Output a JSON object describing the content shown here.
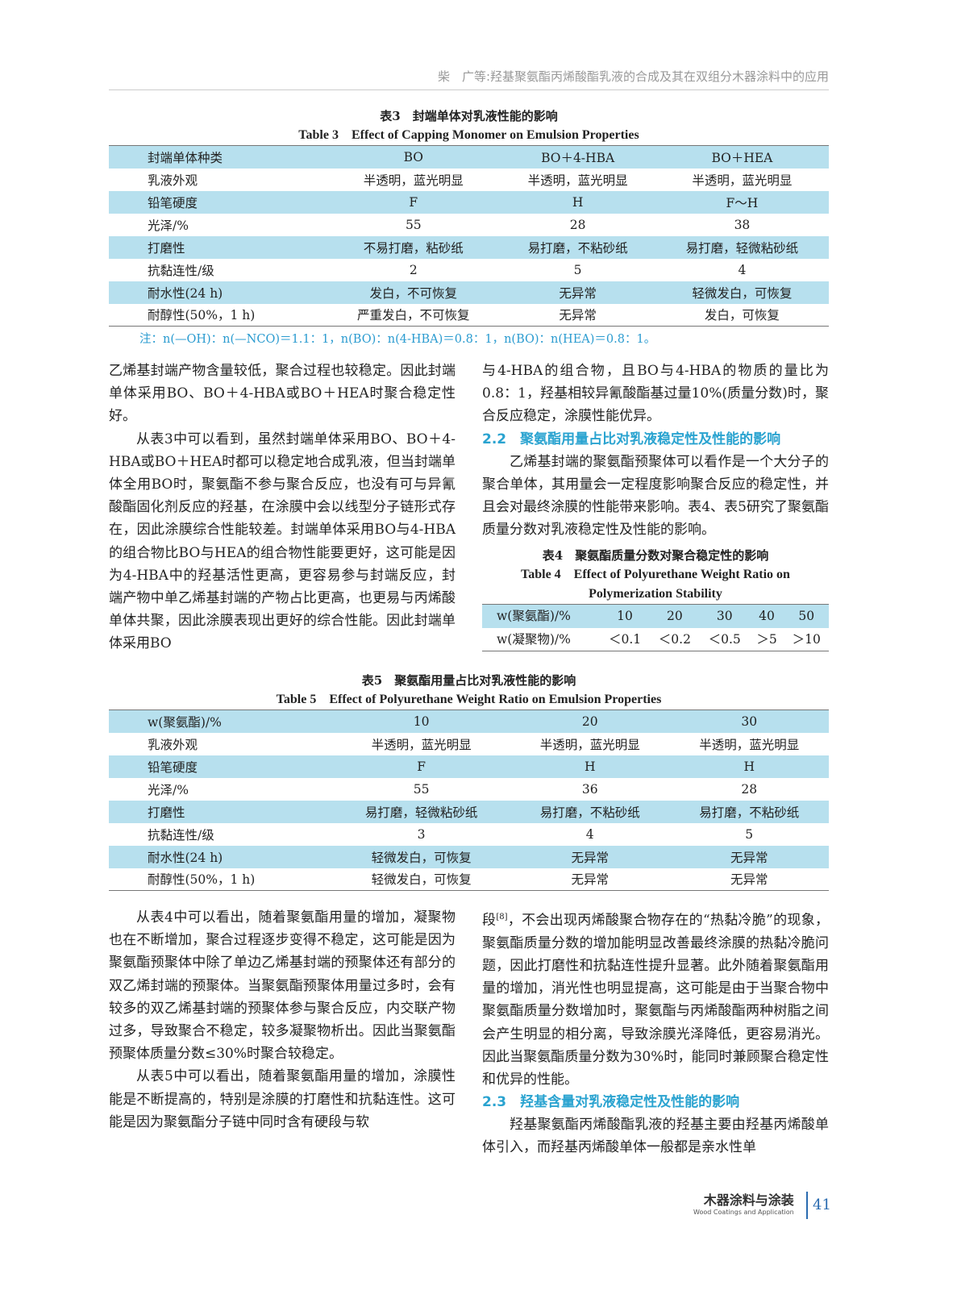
{
  "header": {
    "running_title": "柴　广等:羟基聚氨酯丙烯酸酯乳液的合成及其在双组分木器涂料中的应用"
  },
  "table3": {
    "caption_cn": "表3　封端单体对乳液性能的影响",
    "caption_en": "Table 3　Effect of Capping Monomer on Emulsion Properties",
    "rows": [
      [
        "封端单体种类",
        "BO",
        "BO＋4-HBA",
        "BO＋HEA"
      ],
      [
        "乳液外观",
        "半透明，蓝光明显",
        "半透明，蓝光明显",
        "半透明，蓝光明显"
      ],
      [
        "铅笔硬度",
        "F",
        "H",
        "F～H"
      ],
      [
        "光泽/%",
        "55",
        "28",
        "38"
      ],
      [
        "打磨性",
        "不易打磨，粘砂纸",
        "易打磨，不粘砂纸",
        "易打磨，轻微粘砂纸"
      ],
      [
        "抗黏连性/级",
        "2",
        "5",
        "4"
      ],
      [
        "耐水性(24 h)",
        "发白，不可恢复",
        "无异常",
        "轻微发白，可恢复"
      ],
      [
        "耐醇性(50%，1 h)",
        "严重发白，不可恢复",
        "无异常",
        "发白，可恢复"
      ]
    ],
    "note": "注：n(—OH)：n(—NCO)＝1.1：1，n(BO)：n(4-HBA)＝0.8：1，n(BO)：n(HEA)＝0.8：1。"
  },
  "left1": [
    "乙烯基封端产物含量较低，聚合过程也较稳定。因此封端单体采用BO、BO＋4-HBA或BO＋HEA时聚合稳定性好。",
    "从表3中可以看到，虽然封端单体采用BO、BO＋4-HBA或BO＋HEA时都可以稳定地合成乳液，但当封端单体全用BO时，聚氨酯不参与聚合反应，也没有可与异氰酸酯固化剂反应的羟基，在涂膜中会以线型分子链形式存在，因此涂膜综合性能较差。封端单体采用BO与4-HBA的组合物比BO与HEA的组合物性能要更好，这可能是因为4-HBA中的羟基活性更高，更容易参与封端反应，封端产物中单乙烯基封端的产物占比更高，也更易与丙烯酸单体共聚，因此涂膜表现出更好的综合性能。因此封端单体采用BO"
  ],
  "right1": {
    "p1": "与4-HBA的组合物，且BO与4-HBA的物质的量比为0.8：1，羟基相较异氰酸酯基过量10%(质量分数)时，聚合反应稳定，涂膜性能优异。",
    "h22": "2.2　聚氨酯用量占比对乳液稳定性及性能的影响",
    "p2": "乙烯基封端的聚氨酯预聚体可以看作是一个大分子的聚合单体，其用量会一定程度影响聚合反应的稳定性，并且会对最终涂膜的性能带来影响。表4、表5研究了聚氨酯质量分数对乳液稳定性及性能的影响。"
  },
  "table4": {
    "caption_cn": "表4　聚氨酯质量分数对聚合稳定性的影响",
    "caption_en": "Table 4　Effect of Polyurethane Weight Ratio on Polymerization Stability",
    "rows": [
      [
        "w(聚氨酯)/%",
        "10",
        "20",
        "30",
        "40",
        "50"
      ],
      [
        "w(凝聚物)/%",
        "＜0.1",
        "＜0.2",
        "＜0.5",
        "＞5",
        "＞10"
      ]
    ]
  },
  "table5": {
    "caption_cn": "表5　聚氨酯用量占比对乳液性能的影响",
    "caption_en": "Table 5　Effect of Polyurethane Weight Ratio on Emulsion Properties",
    "rows": [
      [
        "w(聚氨酯)/%",
        "10",
        "20",
        "30"
      ],
      [
        "乳液外观",
        "半透明，蓝光明显",
        "半透明，蓝光明显",
        "半透明，蓝光明显"
      ],
      [
        "铅笔硬度",
        "F",
        "H",
        "H"
      ],
      [
        "光泽/%",
        "55",
        "36",
        "28"
      ],
      [
        "打磨性",
        "易打磨，轻微粘砂纸",
        "易打磨，不粘砂纸",
        "易打磨，不粘砂纸"
      ],
      [
        "抗黏连性/级",
        "3",
        "4",
        "5"
      ],
      [
        "耐水性(24 h)",
        "轻微发白，可恢复",
        "无异常",
        "无异常"
      ],
      [
        "耐醇性(50%，1 h)",
        "轻微发白，可恢复",
        "无异常",
        "无异常"
      ]
    ]
  },
  "left2": [
    "从表4中可以看出，随着聚氨酯用量的增加，凝聚物也在不断增加，聚合过程逐步变得不稳定，这可能是因为聚氨酯预聚体中除了单边乙烯基封端的预聚体还有部分的双乙烯封端的预聚体。当聚氨酯预聚体用量过多时，会有较多的双乙烯基封端的预聚体参与聚合反应，内交联产物过多，导致聚合不稳定，较多凝聚物析出。因此当聚氨酯预聚体质量分数≤30%时聚合较稳定。",
    "从表5中可以看出，随着聚氨酯用量的增加，涂膜性能是不断提高的，特别是涂膜的打磨性和抗黏连性。这可能是因为聚氨酯分子链中同时含有硬段与软"
  ],
  "right2": {
    "p1a": "段",
    "ref": "[8]",
    "p1b": "，不会出现丙烯酸聚合物存在的“热黏冷脆”的现象，聚氨酯质量分数的增加能明显改善最终涂膜的热黏冷脆问题，因此打磨性和抗黏连性提升显著。此外随着聚氨酯用量的增加，消光性也明显提高，这可能是由于当聚合物中聚氨酯质量分数增加时，聚氨酯与丙烯酸酯两种树脂之间会产生明显的相分离，导致涂膜光泽降低，更容易消光。因此当聚氨酯质量分数为30%时，能同时兼顾聚合稳定性和优异的性能。",
    "h23": "2.3　羟基含量对乳液稳定性及性能的影响",
    "p2": "羟基聚氨酯丙烯酸酯乳液的羟基主要由羟基丙烯酸单体引入，而羟基丙烯酸单体一般都是亲水性单"
  },
  "footer": {
    "journal_cn": "木器涂料与涂装",
    "journal_en": "Wood Coatings and Application",
    "page": "41"
  },
  "colors": {
    "table_stripe": "#b7e0ee",
    "accent": "#2aa3d0"
  }
}
